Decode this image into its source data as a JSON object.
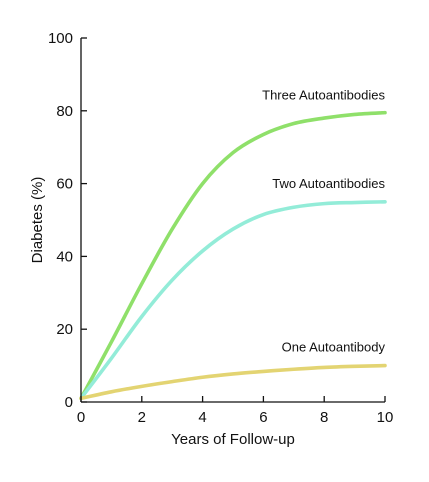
{
  "chart_data": {
    "type": "line",
    "title": "",
    "xlabel": "Years of Follow-up",
    "ylabel": "Diabetes (%)",
    "xlim": [
      0,
      10
    ],
    "ylim": [
      0,
      100
    ],
    "x_ticks": [
      0,
      2,
      4,
      6,
      8,
      10
    ],
    "y_ticks": [
      0,
      20,
      40,
      60,
      80,
      100
    ],
    "x_tick_labels": [
      "0",
      "2",
      "4",
      "6",
      "8",
      "10"
    ],
    "y_tick_labels": [
      "0",
      "20",
      "40",
      "60",
      "80",
      "100"
    ],
    "grid": false,
    "legend": "none",
    "series": [
      {
        "name": "Three Autoantibodies",
        "color": "#8fe06a",
        "label": "Three Autoantibodies",
        "x": [
          0,
          1,
          2,
          3,
          4,
          5,
          6,
          7,
          8,
          9,
          10
        ],
        "y": [
          1,
          16.5,
          32.5,
          47.5,
          60,
          68.5,
          73.5,
          76.5,
          78,
          79,
          79.5
        ]
      },
      {
        "name": "Two Autoantibodies",
        "color": "#93ecd8",
        "label": "Two Autoantibodies",
        "x": [
          0,
          1,
          2,
          3,
          4,
          5,
          6,
          7,
          8,
          9,
          10
        ],
        "y": [
          1,
          12,
          23.5,
          33.5,
          41.5,
          47.5,
          51.5,
          53.5,
          54.5,
          54.8,
          55
        ]
      },
      {
        "name": "One Autoantibody",
        "color": "#e3d472",
        "label": "One Autoantibody",
        "x": [
          0,
          1,
          2,
          3,
          4,
          5,
          6,
          7,
          8,
          9,
          10
        ],
        "y": [
          1,
          2.8,
          4.3,
          5.6,
          6.8,
          7.7,
          8.4,
          9,
          9.5,
          9.8,
          10
        ]
      }
    ]
  }
}
